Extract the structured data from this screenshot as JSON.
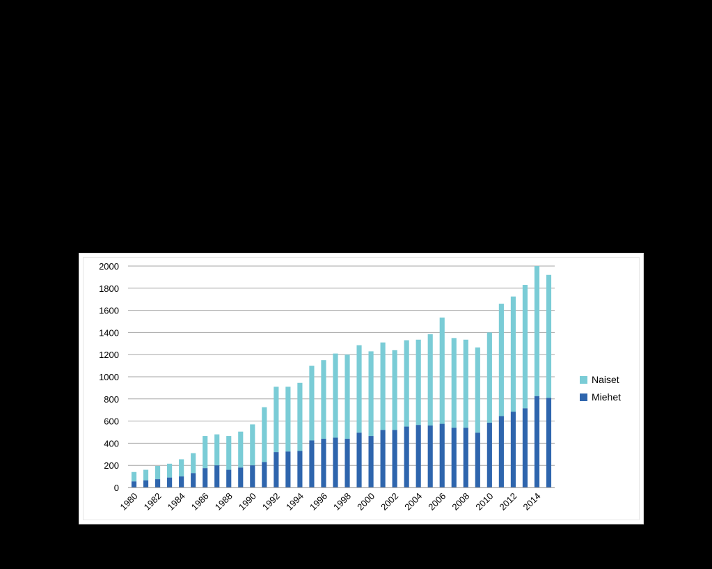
{
  "chart_data": {
    "type": "bar",
    "stacked": true,
    "title": "",
    "xlabel": "",
    "ylabel": "",
    "ylim": [
      0,
      2000
    ],
    "y_ticks": [
      0,
      200,
      400,
      600,
      800,
      1000,
      1200,
      1400,
      1600,
      1800,
      2000
    ],
    "x_tick_labels": [
      "1980",
      "1982",
      "1984",
      "1986",
      "1988",
      "1990",
      "1992",
      "1994",
      "1996",
      "1998",
      "2000",
      "2002",
      "2004",
      "2006",
      "2008",
      "2010",
      "2012",
      "2014"
    ],
    "grid": true,
    "legend_position": "right",
    "categories": [
      "1980",
      "1981",
      "1982",
      "1983",
      "1984",
      "1985",
      "1986",
      "1987",
      "1988",
      "1989",
      "1990",
      "1991",
      "1992",
      "1993",
      "1994",
      "1995",
      "1996",
      "1997",
      "1998",
      "1999",
      "2000",
      "2001",
      "2002",
      "2003",
      "2004",
      "2005",
      "2006",
      "2007",
      "2008",
      "2009",
      "2010",
      "2011",
      "2012",
      "2013",
      "2014",
      "2015"
    ],
    "series": [
      {
        "name": "Miehet",
        "color": "#2e65ad",
        "values": [
          55,
          65,
          75,
          90,
          100,
          130,
          175,
          200,
          160,
          180,
          200,
          230,
          320,
          325,
          330,
          425,
          440,
          450,
          440,
          495,
          465,
          520,
          520,
          550,
          565,
          560,
          575,
          540,
          540,
          495,
          585,
          645,
          685,
          715,
          825,
          810
        ]
      },
      {
        "name": "Naiset",
        "color": "#7accd6",
        "values": [
          85,
          95,
          120,
          125,
          155,
          180,
          290,
          280,
          305,
          325,
          370,
          495,
          590,
          585,
          615,
          675,
          710,
          760,
          760,
          790,
          765,
          790,
          720,
          780,
          770,
          825,
          960,
          810,
          795,
          770,
          815,
          1015,
          1040,
          1115,
          1175,
          1110
        ]
      }
    ]
  }
}
